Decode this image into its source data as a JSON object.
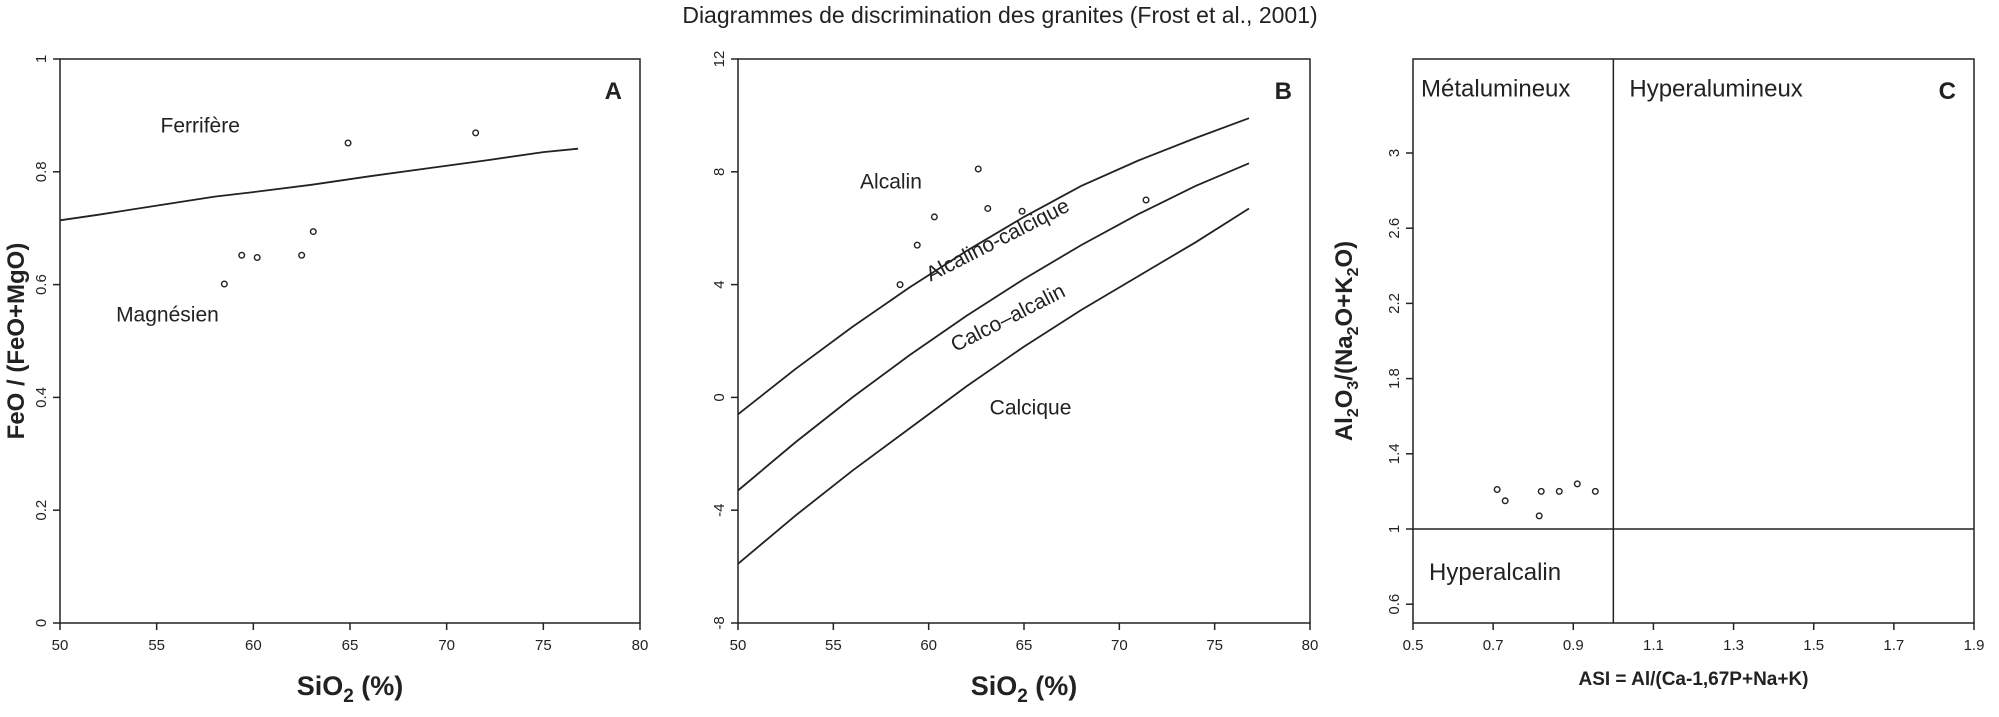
{
  "figure": {
    "title": "Diagrammes de discrimination des granites (Frost et al., 2001)"
  },
  "chart_data": [
    {
      "type": "scatter",
      "panel": "A",
      "xlabel_main": "SiO",
      "xlabel_sub": "2",
      "xlabel_tail": " (%)",
      "ylabel": "FeO / (FeO+MgO)",
      "xlim": [
        50,
        80
      ],
      "ylim": [
        0,
        1
      ],
      "xticks": [
        "50",
        "55",
        "60",
        "65",
        "70",
        "75",
        "80"
      ],
      "yticks": [
        "0",
        "0.2",
        "0.4",
        "0.6",
        "0.8",
        "1"
      ],
      "grid": false,
      "legend": "none",
      "regions": [
        {
          "label": "Ferrifère",
          "x": 55.2,
          "y": 0.87
        },
        {
          "label": "Magnésien",
          "x": 52.9,
          "y": 0.535
        }
      ],
      "boundary": {
        "x": [
          50,
          52,
          55,
          58,
          60,
          63,
          66,
          69,
          72,
          75,
          76.8
        ],
        "y": [
          0.714,
          0.724,
          0.74,
          0.756,
          0.764,
          0.777,
          0.792,
          0.806,
          0.82,
          0.835,
          0.841
        ]
      },
      "points": {
        "x": [
          58.5,
          59.4,
          60.2,
          62.5,
          63.1,
          64.9,
          71.5
        ],
        "y": [
          0.601,
          0.652,
          0.648,
          0.652,
          0.694,
          0.851,
          0.869
        ]
      }
    },
    {
      "type": "scatter",
      "panel": "B",
      "xlabel_main": "SiO",
      "xlabel_sub": "2",
      "xlabel_tail": " (%)",
      "ylabel": "",
      "xlim": [
        50,
        80
      ],
      "ylim": [
        -8,
        12
      ],
      "xticks": [
        "50",
        "55",
        "60",
        "65",
        "70",
        "75",
        "80"
      ],
      "yticks": [
        "-8",
        "-4",
        "0",
        "4",
        "8",
        "12"
      ],
      "grid": false,
      "legend": "none",
      "regions": [
        {
          "label": "Alcalin",
          "x": 56.4,
          "y": 7.4
        },
        {
          "label": "Calcique",
          "x": 63.2,
          "y": -0.6
        }
      ],
      "curve_labels": [
        {
          "label": "Alcalino-calcique",
          "x": 60.1,
          "y": 4.1,
          "angle": -27
        },
        {
          "label": "Calco–alcalin",
          "x": 61.4,
          "y": 1.6,
          "angle": -27
        }
      ],
      "curves": [
        {
          "x": [
            50,
            53,
            56,
            59,
            62,
            65,
            68,
            71,
            74,
            76.8
          ],
          "y": [
            -0.6,
            1.0,
            2.5,
            3.9,
            5.2,
            6.4,
            7.5,
            8.4,
            9.2,
            9.9
          ]
        },
        {
          "x": [
            50,
            53,
            56,
            59,
            62,
            65,
            68,
            71,
            74,
            76.8
          ],
          "y": [
            -3.3,
            -1.6,
            0.0,
            1.5,
            2.9,
            4.2,
            5.4,
            6.5,
            7.5,
            8.3
          ]
        },
        {
          "x": [
            50,
            53,
            56,
            59,
            62,
            65,
            68,
            71,
            74,
            76.8
          ],
          "y": [
            -5.9,
            -4.2,
            -2.6,
            -1.1,
            0.4,
            1.8,
            3.1,
            4.3,
            5.5,
            6.7
          ]
        }
      ],
      "points": {
        "x": [
          58.5,
          59.4,
          60.3,
          62.6,
          63.1,
          64.9,
          71.4
        ],
        "y": [
          4.0,
          5.4,
          6.4,
          8.1,
          6.7,
          6.6,
          7.0
        ]
      }
    },
    {
      "type": "scatter",
      "panel": "C",
      "xlabel": "ASI = Al/(Ca-1,67P+Na+K)",
      "ylabel_parts": [
        "Al",
        "2",
        "O",
        "3",
        "/(Na",
        "2",
        "O+K",
        "2",
        "O)"
      ],
      "xlim": [
        0.5,
        1.9
      ],
      "ylim": [
        0.5,
        3.5
      ],
      "xticks": [
        "0.5",
        "0.7",
        "0.9",
        "1.1",
        "1.3",
        "1.5",
        "1.7",
        "1.9"
      ],
      "yticks": [
        "0.6",
        "1",
        "1.4",
        "1.8",
        "2.2",
        "2.6",
        "3"
      ],
      "grid": false,
      "legend": "none",
      "regions": [
        {
          "label": "Métalumineux",
          "x": 0.52,
          "y": 3.3
        },
        {
          "label": "Hyperalumineux",
          "x": 1.04,
          "y": 3.3
        },
        {
          "label": "Hyperalcalin",
          "x": 0.54,
          "y": 0.73
        }
      ],
      "dividers": {
        "vertical_x": 1.0,
        "horizontal_y": 1.0
      },
      "points": {
        "x": [
          0.71,
          0.73,
          0.815,
          0.82,
          0.865,
          0.91,
          0.955
        ],
        "y": [
          1.21,
          1.15,
          1.07,
          1.2,
          1.2,
          1.24,
          1.2
        ]
      }
    }
  ]
}
